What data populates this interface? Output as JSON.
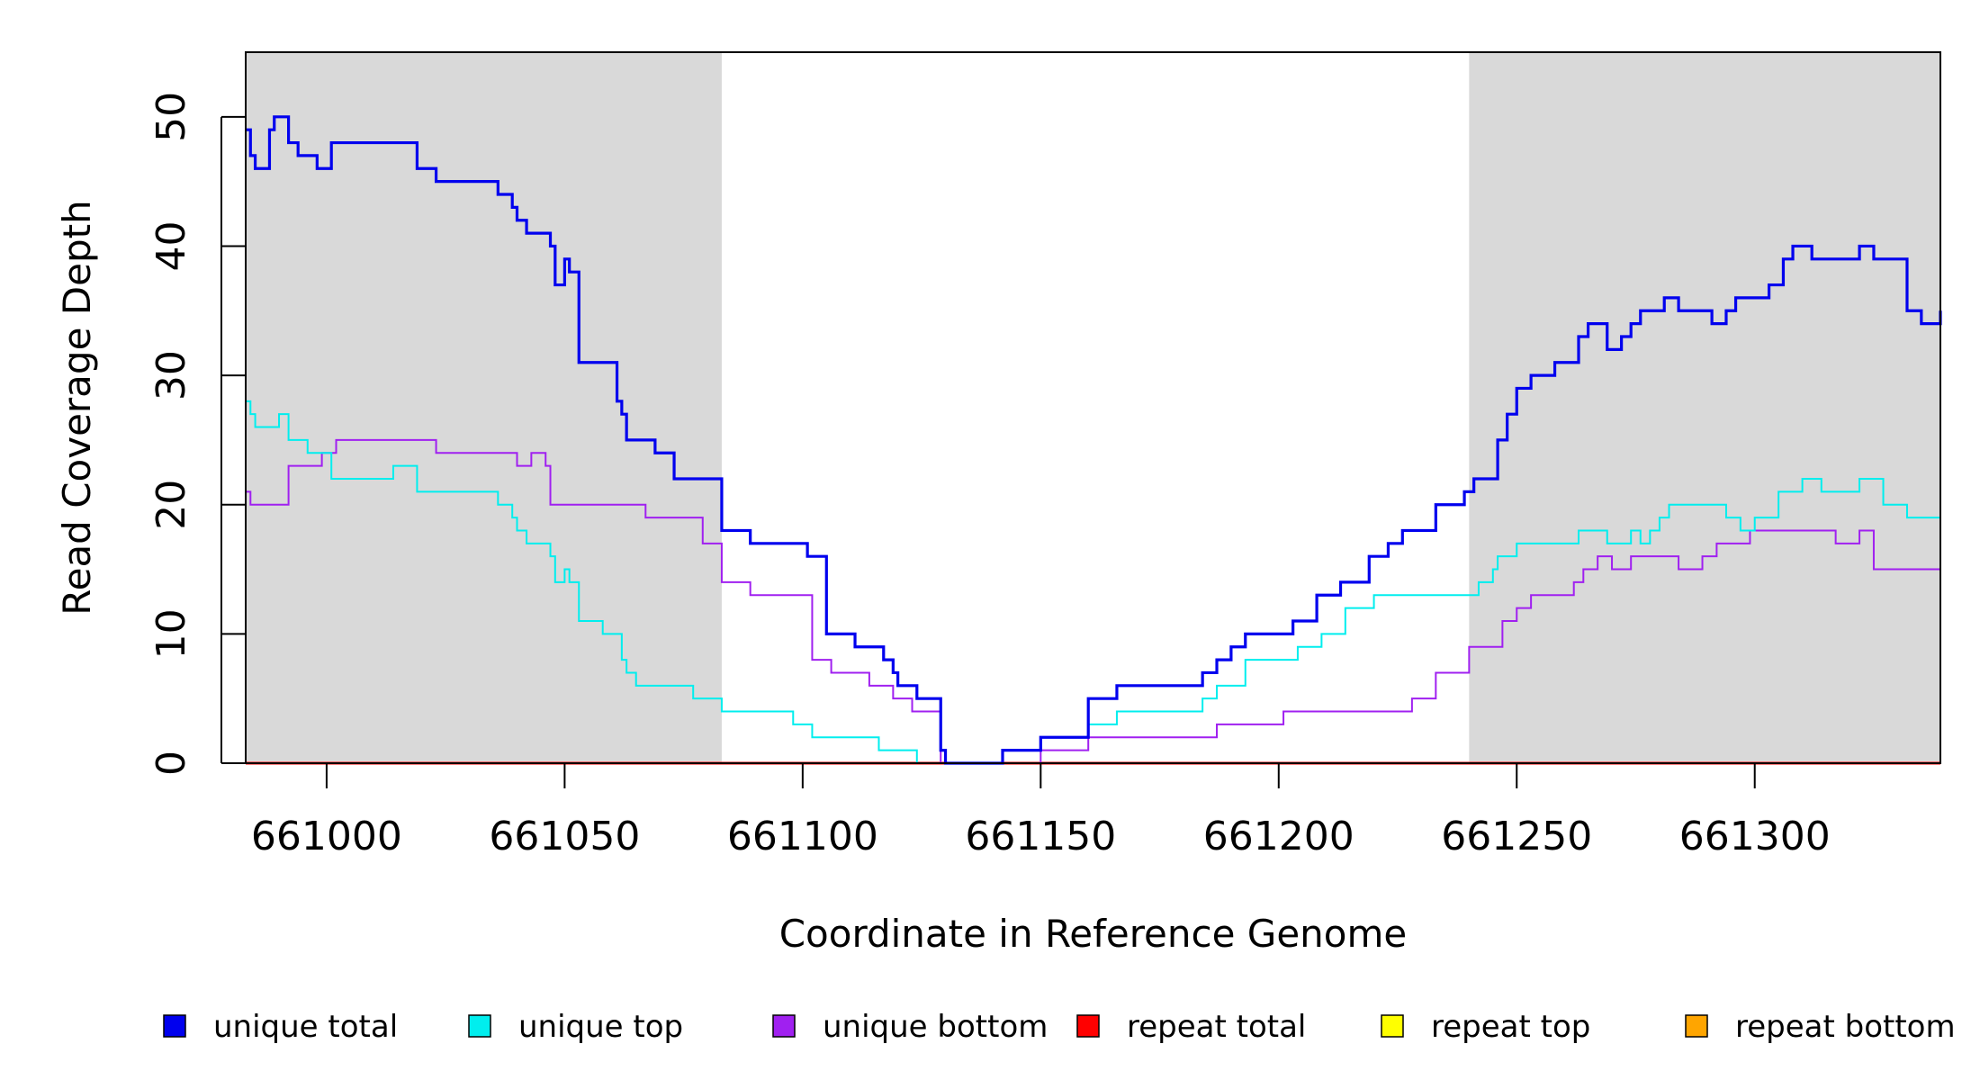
{
  "chart_data": {
    "type": "line",
    "title": "",
    "xlabel": "Coordinate in Reference Genome",
    "ylabel": "Read Coverage Depth",
    "xlim": [
      660983,
      661339
    ],
    "ylim": [
      0,
      55
    ],
    "x_ticks": [
      661000,
      661050,
      661100,
      661150,
      661200,
      661250,
      661300
    ],
    "x_tick_labels": [
      "661000",
      "661050",
      "661100",
      "661150",
      "661200",
      "661250",
      "661300"
    ],
    "y_ticks": [
      0,
      10,
      20,
      30,
      40,
      50
    ],
    "y_tick_labels": [
      "0",
      "10",
      "20",
      "30",
      "40",
      "50"
    ],
    "grid": false,
    "legend_position": "bottom",
    "shaded_regions": [
      {
        "from": 660983,
        "to": 661083,
        "color": "#d9d9d9"
      },
      {
        "from": 661240,
        "to": 661339,
        "color": "#d9d9d9"
      }
    ],
    "series": [
      {
        "name": "unique total",
        "color": "#0000ee",
        "x": [
          660983,
          660984,
          660985,
          660986,
          660988,
          660989,
          660990,
          660992,
          660994,
          660998,
          661001,
          661014,
          661019,
          661023,
          661036,
          661039,
          661040,
          661042,
          661047,
          661048,
          661050,
          661051,
          661053,
          661058,
          661061,
          661062,
          661063,
          661065,
          661069,
          661073,
          661077,
          661083,
          661089,
          661101,
          661105,
          661111,
          661117,
          661119,
          661120,
          661124,
          661129,
          661130,
          661137,
          661142,
          661150,
          661160,
          661166,
          661177,
          661184,
          661187,
          661190,
          661193,
          661203,
          661208,
          661213,
          661219,
          661223,
          661226,
          661233,
          661239,
          661241,
          661245,
          661246,
          661248,
          661250,
          661253,
          661258,
          661263,
          661265,
          661269,
          661272,
          661274,
          661276,
          661281,
          661284,
          661286,
          661291,
          661294,
          661296,
          661301,
          661303,
          661306,
          661308,
          661312,
          661314,
          661322,
          661325,
          661332,
          661335,
          661339
        ],
        "y": [
          49,
          47,
          46,
          46,
          49,
          50,
          50,
          48,
          47,
          46,
          48,
          48,
          46,
          45,
          44,
          43,
          42,
          41,
          40,
          37,
          39,
          38,
          31,
          31,
          28,
          27,
          25,
          25,
          24,
          22,
          22,
          18,
          17,
          16,
          10,
          9,
          8,
          7,
          6,
          5,
          1,
          0,
          0,
          1,
          2,
          5,
          6,
          6,
          7,
          8,
          9,
          10,
          11,
          13,
          14,
          16,
          17,
          18,
          20,
          21,
          22,
          22,
          25,
          27,
          29,
          30,
          31,
          33,
          34,
          32,
          33,
          34,
          35,
          36,
          35,
          35,
          34,
          35,
          36,
          36,
          37,
          39,
          40,
          39,
          39,
          40,
          39,
          35,
          34,
          35
        ]
      },
      {
        "name": "unique top",
        "color": "#00eeee",
        "x": [
          660983,
          660984,
          660985,
          660988,
          660990,
          660992,
          660996,
          661001,
          661014,
          661019,
          661036,
          661039,
          661040,
          661042,
          661047,
          661048,
          661050,
          661051,
          661053,
          661058,
          661062,
          661063,
          661065,
          661069,
          661077,
          661083,
          661089,
          661098,
          661102,
          661116,
          661124,
          661128,
          661130,
          661142,
          661150,
          661160,
          661166,
          661177,
          661184,
          661187,
          661193,
          661204,
          661209,
          661214,
          661220,
          661228,
          661242,
          661245,
          661246,
          661248,
          661250,
          661253,
          661258,
          661263,
          661265,
          661269,
          661274,
          661276,
          661278,
          661280,
          661282,
          661286,
          661294,
          661297,
          661300,
          661305,
          661310,
          661314,
          661322,
          661327,
          661332,
          661339
        ],
        "y": [
          28,
          27,
          26,
          26,
          27,
          25,
          24,
          22,
          23,
          21,
          20,
          19,
          18,
          17,
          16,
          14,
          15,
          14,
          11,
          10,
          8,
          7,
          6,
          6,
          5,
          4,
          4,
          3,
          2,
          1,
          0,
          0,
          0,
          1,
          2,
          3,
          4,
          4,
          5,
          6,
          8,
          9,
          10,
          12,
          13,
          13,
          14,
          15,
          16,
          16,
          17,
          17,
          17,
          18,
          18,
          17,
          18,
          17,
          18,
          19,
          20,
          20,
          19,
          18,
          19,
          21,
          22,
          21,
          22,
          20,
          19,
          20
        ]
      },
      {
        "name": "unique bottom",
        "color": "#a020f0",
        "x": [
          660983,
          660984,
          660987,
          660992,
          660999,
          661002,
          661023,
          661040,
          661043,
          661046,
          661047,
          661052,
          661067,
          661079,
          661083,
          661089,
          661094,
          661102,
          661106,
          661114,
          661117,
          661119,
          661121,
          661123,
          661129,
          661142,
          661150,
          661160,
          661166,
          661177,
          661187,
          661201,
          661207,
          661214,
          661228,
          661233,
          661236,
          661240,
          661247,
          661250,
          661252,
          661253,
          661255,
          661262,
          661264,
          661267,
          661270,
          661274,
          661284,
          661286,
          661289,
          661292,
          661299,
          661312,
          661317,
          661322,
          661325,
          661339
        ],
        "y": [
          21,
          20,
          20,
          23,
          24,
          25,
          24,
          23,
          24,
          23,
          20,
          20,
          19,
          17,
          14,
          13,
          13,
          8,
          7,
          6,
          6,
          5,
          5,
          4,
          0,
          0,
          1,
          2,
          2,
          2,
          3,
          4,
          4,
          4,
          5,
          7,
          7,
          9,
          11,
          12,
          12,
          13,
          13,
          14,
          15,
          16,
          15,
          16,
          15,
          15,
          16,
          17,
          18,
          18,
          17,
          18,
          15,
          15
        ]
      },
      {
        "name": "repeat total",
        "color": "#ff0000",
        "x": [
          660983,
          661339
        ],
        "y": [
          0,
          0
        ]
      },
      {
        "name": "repeat top",
        "color": "#ffff00",
        "x": [
          660983,
          661339
        ],
        "y": [
          0,
          0
        ]
      },
      {
        "name": "repeat bottom",
        "color": "#ffa500",
        "x": [
          660983,
          661339
        ],
        "y": [
          0,
          0
        ]
      }
    ]
  }
}
